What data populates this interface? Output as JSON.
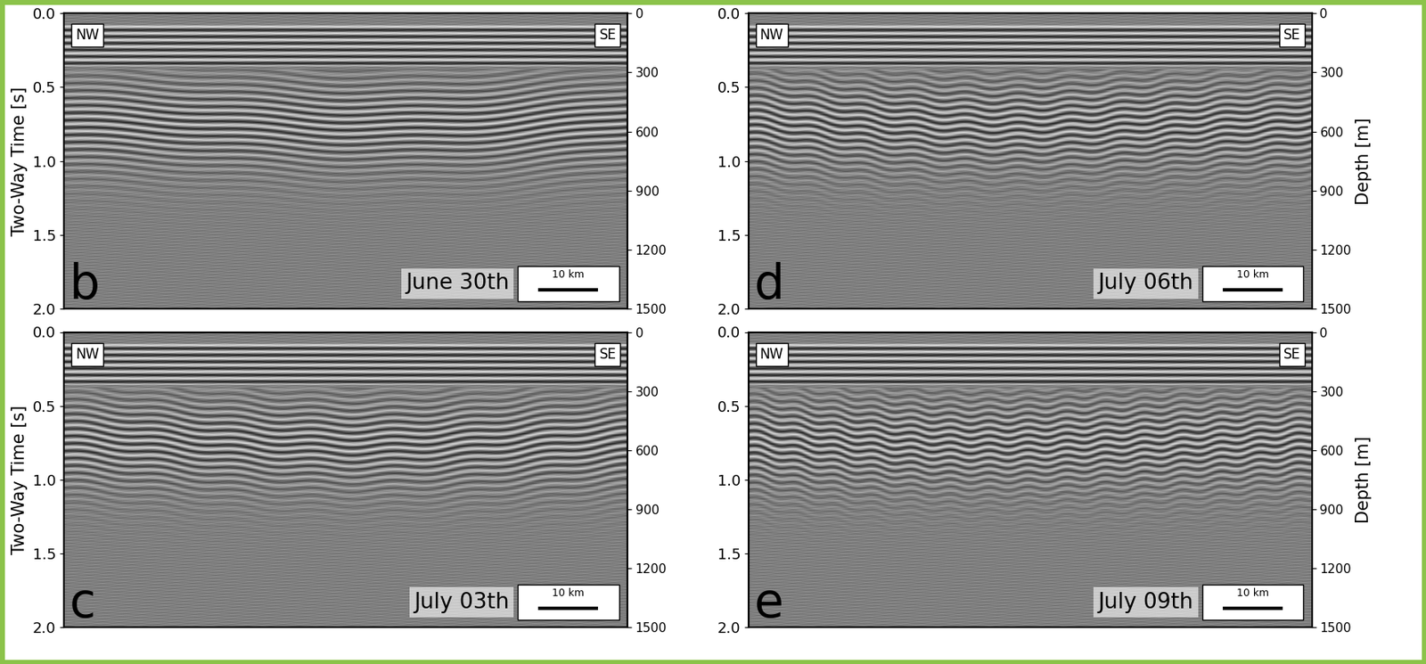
{
  "chart_data": [
    {
      "type": "image",
      "ylabel": "Two-Way Time [s]",
      "ylim": [
        2.0,
        0.0
      ],
      "yticks": [
        {
          "value": 0,
          "label": "0.0"
        },
        {
          "value": 0.5,
          "label": "0.5"
        },
        {
          "value": 1,
          "label": "1.0"
        },
        {
          "value": 1.5,
          "label": "1.5"
        },
        {
          "value": 2,
          "label": "2.0"
        }
      ],
      "y2lim": [
        1500,
        0
      ],
      "y2ticks": [
        0,
        300,
        600,
        900,
        1200,
        1500
      ],
      "tick_labels": "y",
      "annotations": {
        "panel": "b",
        "date": "June 30th",
        "left": "NW",
        "right": "SE",
        "scale_bar": "10 km"
      }
    },
    {
      "type": "image",
      "ylabel": "Two-Way Time [s]",
      "ylim": [
        2.0,
        0.0
      ],
      "yticks": [
        {
          "value": 0,
          "label": "0.0"
        },
        {
          "value": 0.5,
          "label": "0.5"
        },
        {
          "value": 1,
          "label": "1.0"
        },
        {
          "value": 1.5,
          "label": "1.5"
        },
        {
          "value": 2,
          "label": "2.0"
        }
      ],
      "y2lim": [
        1500,
        0
      ],
      "y2ticks": [
        0,
        300,
        600,
        900,
        1200,
        1500
      ],
      "tick_labels": "y",
      "annotations": {
        "panel": "c",
        "date": "July 03th",
        "left": "NW",
        "right": "SE",
        "scale_bar": "10 km"
      }
    },
    {
      "type": "image",
      "y2label": "Depth [m]",
      "ylim": [
        2.0,
        0.0
      ],
      "yticks": [
        {
          "value": 0,
          "label": "0.0"
        },
        {
          "value": 0.5,
          "label": "0.5"
        },
        {
          "value": 1,
          "label": "1.0"
        },
        {
          "value": 1.5,
          "label": "1.5"
        },
        {
          "value": 2,
          "label": "2.0"
        }
      ],
      "y2lim": [
        1500,
        0
      ],
      "y2ticks": [
        0,
        300,
        600,
        900,
        1200,
        1500
      ],
      "tick_labels": "y",
      "annotations": {
        "panel": "d",
        "date": "July 06th",
        "left": "NW",
        "right": "SE",
        "scale_bar": "10 km"
      }
    },
    {
      "type": "image",
      "y2label": "Depth [m]",
      "ylim": [
        2.0,
        0.0
      ],
      "yticks": [
        {
          "value": 0,
          "label": "0.0"
        },
        {
          "value": 0.5,
          "label": "0.5"
        },
        {
          "value": 1,
          "label": "1.0"
        },
        {
          "value": 1.5,
          "label": "1.5"
        },
        {
          "value": 2,
          "label": "2.0"
        }
      ],
      "y2lim": [
        1500,
        0
      ],
      "y2ticks": [
        0,
        300,
        600,
        900,
        1200,
        1500
      ],
      "tick_labels": "y",
      "annotations": {
        "panel": "e",
        "date": "July 09th",
        "left": "NW",
        "right": "SE",
        "scale_bar": "10 km"
      }
    }
  ]
}
